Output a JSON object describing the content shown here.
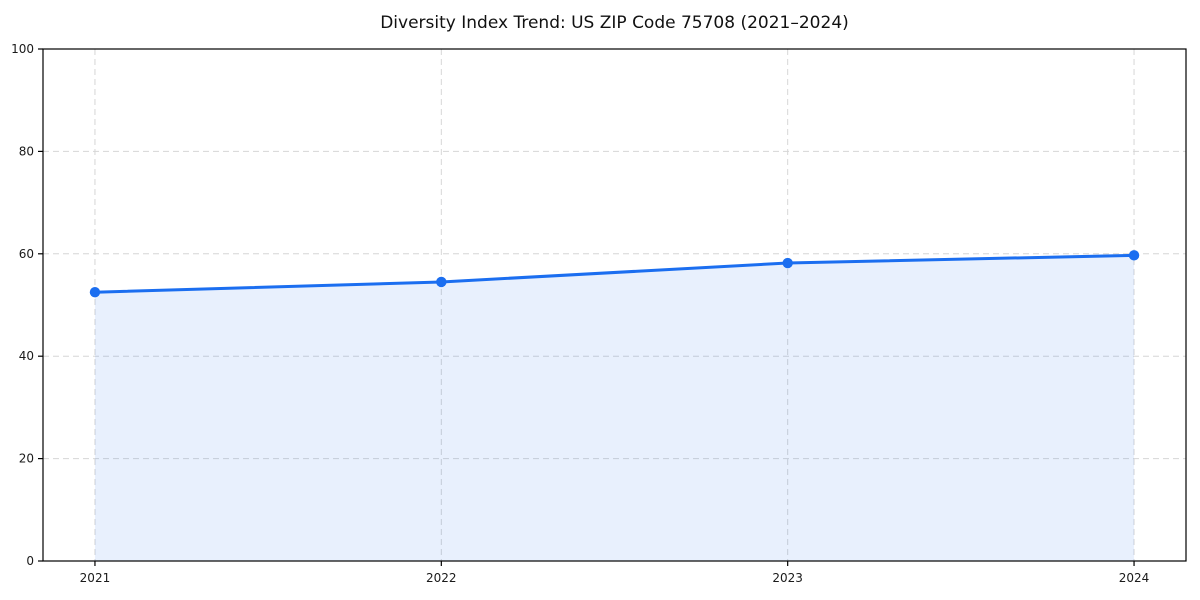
{
  "title": "Diversity Index Trend: US ZIP Code 75708 (2021–2024)",
  "chart_data": {
    "type": "area",
    "title": "Diversity Index Trend: US ZIP Code 75708 (2021–2024)",
    "categories": [
      "2021",
      "2022",
      "2023",
      "2024"
    ],
    "series": [
      {
        "name": "Diversity Index",
        "values": [
          52.5,
          54.5,
          58.2,
          59.7
        ]
      }
    ],
    "xlabel": "",
    "ylabel": "",
    "ylim": [
      0,
      100
    ],
    "yticks": [
      0,
      20,
      40,
      60,
      80,
      100
    ],
    "grid": true,
    "grid_style": "dashed",
    "legend_position": "none",
    "colors": {
      "line": "#1b6ef0",
      "marker": "#1b6ef0",
      "fill": "#1b6ef0",
      "fill_opacity": 0.1,
      "grid": "#d6d6d6",
      "axis": "#000000",
      "tick_text": "#1a1a1a",
      "background": "#ffffff"
    }
  }
}
